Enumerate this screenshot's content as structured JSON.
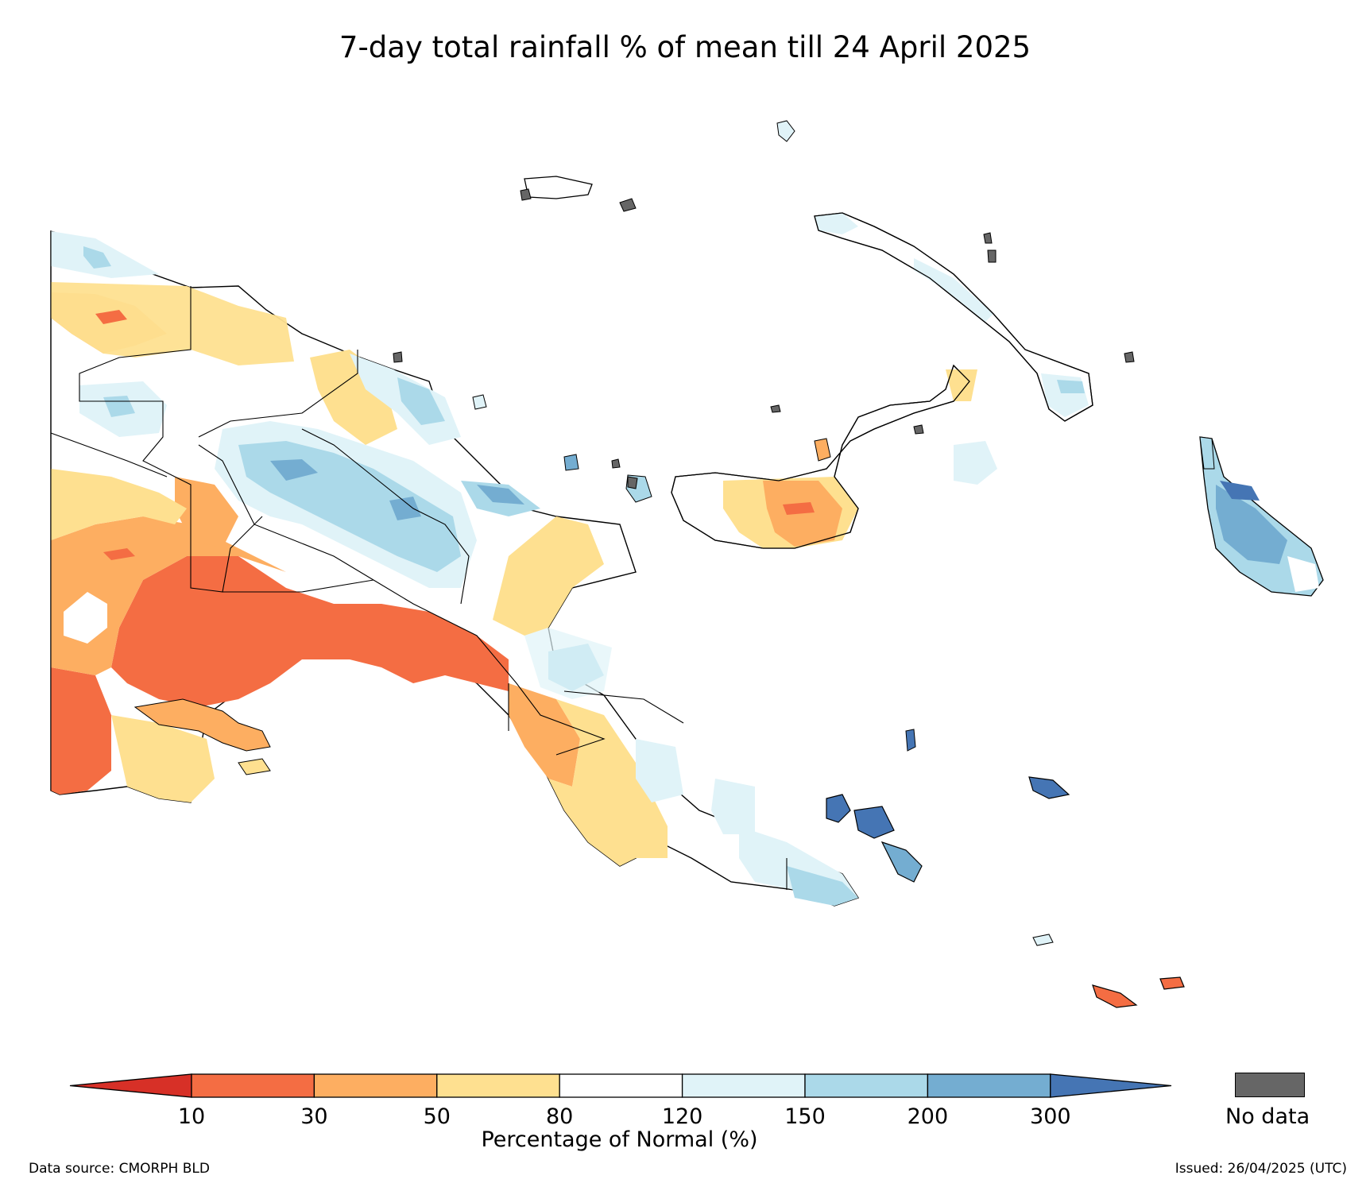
{
  "title": "7-day total rainfall % of mean till 24 April 2025",
  "colorbar": {
    "ticks": [
      "10",
      "30",
      "50",
      "80",
      "120",
      "150",
      "200",
      "300"
    ],
    "label": "Percentage of Normal (%)",
    "colors": [
      "#d73027",
      "#f46d43",
      "#fdae61",
      "#fee090",
      "#ffffff",
      "#e0f3f8",
      "#abd9e9",
      "#74add1",
      "#4575b4"
    ],
    "no_data_label": "No data",
    "no_data_color": "#666666"
  },
  "footer": {
    "source": "Data source: CMORPH BLD",
    "issued": "Issued: 26/04/2025 (UTC)"
  }
}
